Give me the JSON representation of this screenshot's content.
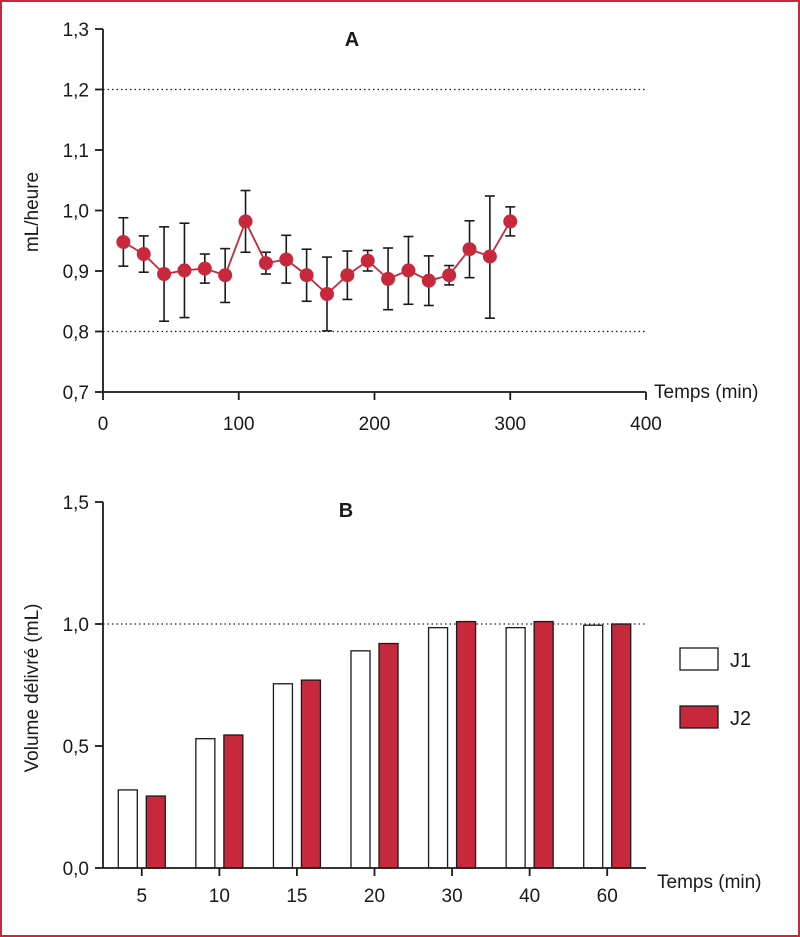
{
  "chart_data": [
    {
      "type": "line",
      "panel_label": "A",
      "ylabel": "mL/heure",
      "xlabel": "Temps (min)",
      "xlim": [
        0,
        400
      ],
      "ylim": [
        0.7,
        1.3
      ],
      "x_ticks": [
        0,
        100,
        200,
        300,
        400
      ],
      "y_ticks": [
        0.7,
        0.8,
        0.9,
        1.0,
        1.1,
        1.2,
        1.3
      ],
      "x_tick_labels": [
        "0",
        "100",
        "200",
        "300",
        "400"
      ],
      "y_tick_labels": [
        "0,7",
        "0,8",
        "0,9",
        "1,0",
        "1,1",
        "1,2",
        "1,3"
      ],
      "reference_lines": [
        0.8,
        1.2
      ],
      "color": "#c8283c",
      "series": [
        {
          "x": [
            15,
            30,
            45,
            60,
            75,
            90,
            105,
            120,
            135,
            150,
            165,
            180,
            195,
            210,
            225,
            240,
            255,
            270,
            285,
            300
          ],
          "y": [
            0.948,
            0.928,
            0.895,
            0.901,
            0.904,
            0.893,
            0.982,
            0.913,
            0.919,
            0.893,
            0.862,
            0.893,
            0.917,
            0.887,
            0.901,
            0.884,
            0.893,
            0.936,
            0.924,
            0.982
          ],
          "err_low": [
            0.908,
            0.898,
            0.817,
            0.823,
            0.88,
            0.848,
            0.931,
            0.895,
            0.88,
            0.85,
            0.801,
            0.853,
            0.9,
            0.836,
            0.845,
            0.843,
            0.877,
            0.889,
            0.822,
            0.958
          ],
          "err_high": [
            0.988,
            0.958,
            0.973,
            0.979,
            0.928,
            0.937,
            1.033,
            0.931,
            0.959,
            0.936,
            0.923,
            0.933,
            0.934,
            0.938,
            0.957,
            0.925,
            0.909,
            0.983,
            1.024,
            1.006
          ]
        }
      ]
    },
    {
      "type": "bar",
      "panel_label": "B",
      "ylabel": "Volume délivré (mL)",
      "xlabel": "Temps (min)",
      "ylim": [
        0,
        1.5
      ],
      "y_ticks": [
        0,
        0.5,
        1.0,
        1.5
      ],
      "y_tick_labels": [
        "0,0",
        "0,5",
        "1,0",
        "1,5"
      ],
      "reference_lines": [
        1.0
      ],
      "categories": [
        "5",
        "10",
        "15",
        "20",
        "30",
        "40",
        "60"
      ],
      "series": [
        {
          "name": "J1",
          "color": "#ffffff",
          "values": [
            0.32,
            0.53,
            0.755,
            0.89,
            0.985,
            0.985,
            0.995
          ]
        },
        {
          "name": "J2",
          "color": "#c8283c",
          "values": [
            0.295,
            0.545,
            0.77,
            0.92,
            1.01,
            1.01,
            1.0
          ]
        }
      ],
      "legend": "right"
    }
  ]
}
